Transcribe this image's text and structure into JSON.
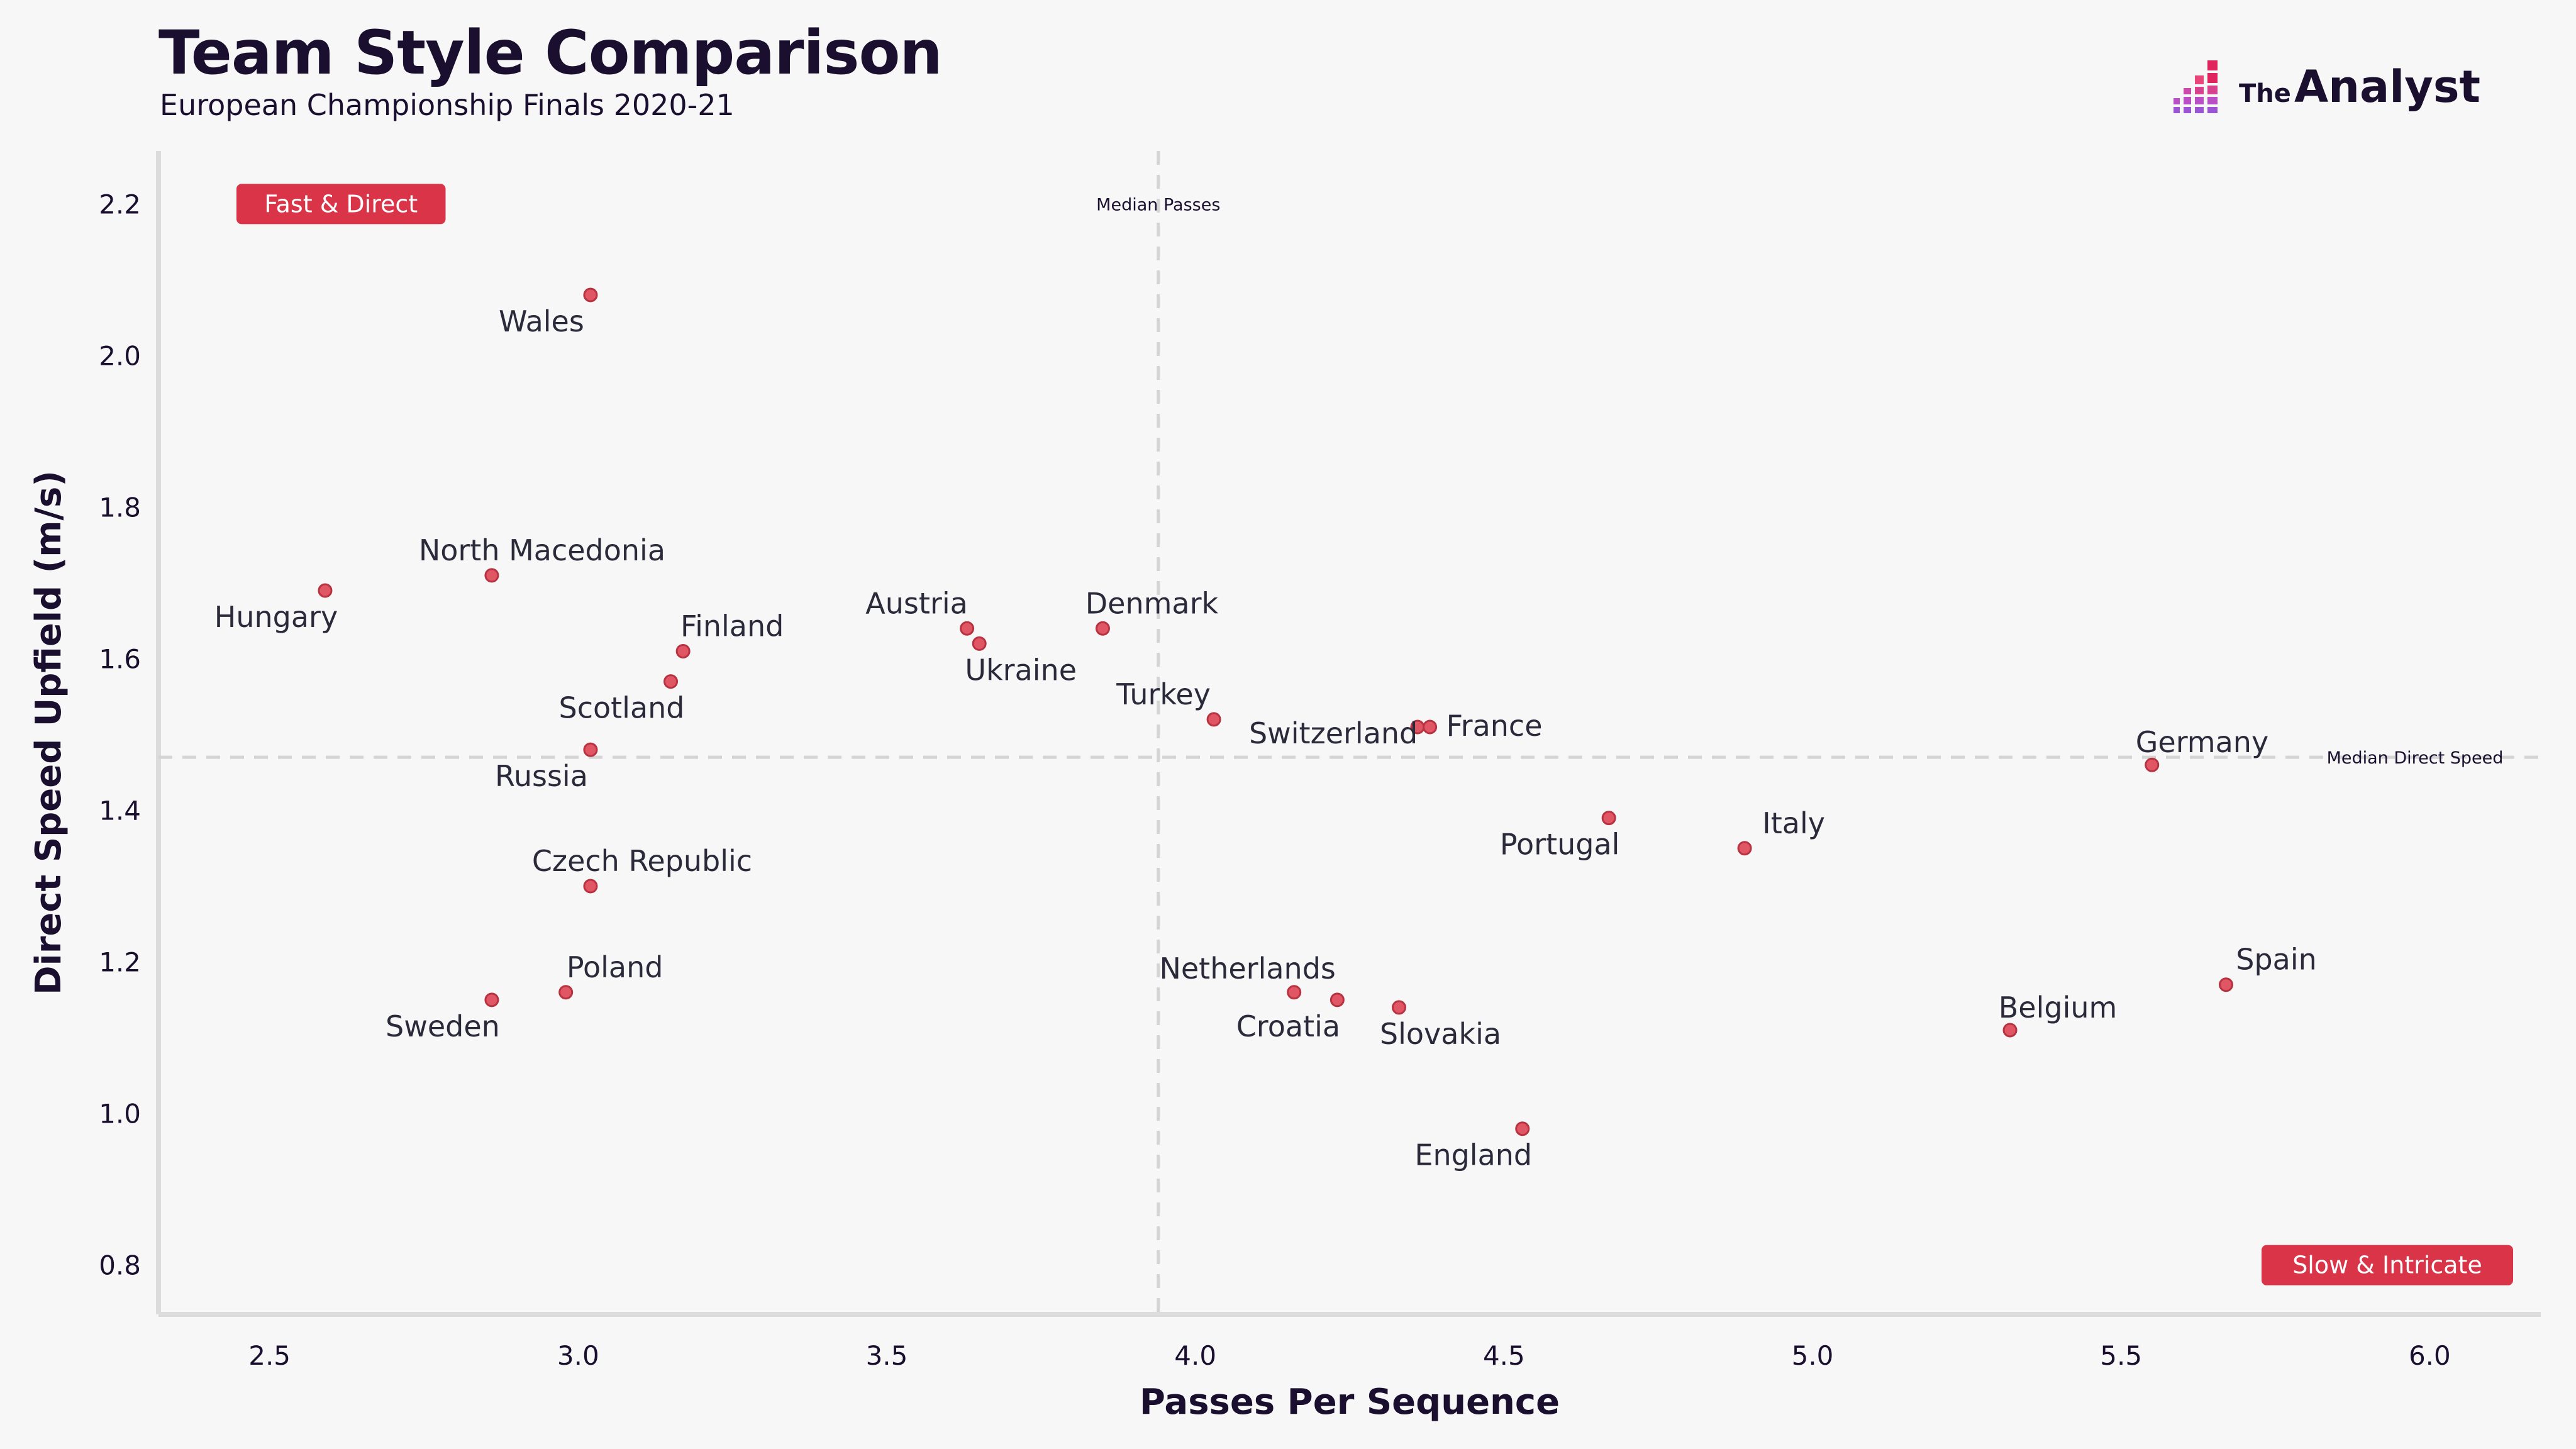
{
  "header": {
    "title": "Team Style Comparison",
    "subtitle": "European Championship Finals 2020-21"
  },
  "brand": {
    "prefix": "The",
    "name": "Analyst",
    "icon": "bar-logo-icon"
  },
  "colors": {
    "background": "#f7f7f7",
    "point_fill": "#e05664",
    "point_stroke": "#b8323f",
    "quadrant_badge": "#d93448",
    "axis": "#dcdcdc",
    "median_line": "#d4d4d4",
    "text": "#1a0f2e"
  },
  "chart_data": {
    "type": "scatter",
    "xlabel": "Passes Per Sequence",
    "ylabel": "Direct Speed Upfield (m/s)",
    "xlim": [
      2.32,
      6.18
    ],
    "ylim": [
      0.735,
      2.27
    ],
    "xticks": [
      "2.5",
      "3.0",
      "3.5",
      "4.0",
      "4.5",
      "5.0",
      "5.5",
      "6.0"
    ],
    "yticks": [
      "0.8",
      "1.0",
      "1.2",
      "1.4",
      "1.6",
      "1.8",
      "2.0",
      "2.2"
    ],
    "median_x": 3.94,
    "median_x_label": "Median Passes",
    "median_y": 1.47,
    "median_y_label": "Median Direct Speed",
    "quadrant_labels": [
      {
        "text": "Fast & Direct",
        "position": "top-left"
      },
      {
        "text": "Slow & Intricate",
        "position": "bottom-right"
      }
    ],
    "points": [
      {
        "team": "Wales",
        "x": 3.02,
        "y": 2.08,
        "label_pos": "below-left"
      },
      {
        "team": "Hungary",
        "x": 2.59,
        "y": 1.69,
        "label_pos": "below-left"
      },
      {
        "team": "North Macedonia",
        "x": 2.86,
        "y": 1.71,
        "label_pos": "above-right"
      },
      {
        "team": "Finland",
        "x": 3.17,
        "y": 1.61,
        "label_pos": "above-right"
      },
      {
        "team": "Scotland",
        "x": 3.15,
        "y": 1.57,
        "label_pos": "below-left"
      },
      {
        "team": "Russia",
        "x": 3.02,
        "y": 1.48,
        "label_pos": "below-left"
      },
      {
        "team": "Czech Republic",
        "x": 3.02,
        "y": 1.3,
        "label_pos": "above-right"
      },
      {
        "team": "Poland",
        "x": 2.98,
        "y": 1.16,
        "label_pos": "above-right"
      },
      {
        "team": "Sweden",
        "x": 2.86,
        "y": 1.15,
        "label_pos": "below-left"
      },
      {
        "team": "Austria",
        "x": 3.63,
        "y": 1.64,
        "label_pos": "above-left"
      },
      {
        "team": "Ukraine",
        "x": 3.65,
        "y": 1.62,
        "label_pos": "below-right"
      },
      {
        "team": "Denmark",
        "x": 3.85,
        "y": 1.64,
        "label_pos": "above-right"
      },
      {
        "team": "Turkey",
        "x": 4.03,
        "y": 1.52,
        "label_pos": "above-left"
      },
      {
        "team": "Switzerland",
        "x": 4.36,
        "y": 1.51,
        "label_pos": "below-left"
      },
      {
        "team": "France",
        "x": 4.38,
        "y": 1.51,
        "label_pos": "right"
      },
      {
        "team": "Portugal",
        "x": 4.67,
        "y": 1.39,
        "label_pos": "below-left"
      },
      {
        "team": "Italy",
        "x": 4.89,
        "y": 1.35,
        "label_pos": "above-right"
      },
      {
        "team": "Germany",
        "x": 5.55,
        "y": 1.46,
        "label_pos": "above-left"
      },
      {
        "team": "Netherlands",
        "x": 4.16,
        "y": 1.16,
        "label_pos": "above-left"
      },
      {
        "team": "Croatia",
        "x": 4.23,
        "y": 1.15,
        "label_pos": "below-left"
      },
      {
        "team": "Slovakia",
        "x": 4.33,
        "y": 1.14,
        "label_pos": "below-right"
      },
      {
        "team": "England",
        "x": 4.53,
        "y": 0.98,
        "label_pos": "below-left"
      },
      {
        "team": "Belgium",
        "x": 5.32,
        "y": 1.11,
        "label_pos": "above-right"
      },
      {
        "team": "Spain",
        "x": 5.67,
        "y": 1.17,
        "label_pos": "above-right"
      }
    ]
  }
}
